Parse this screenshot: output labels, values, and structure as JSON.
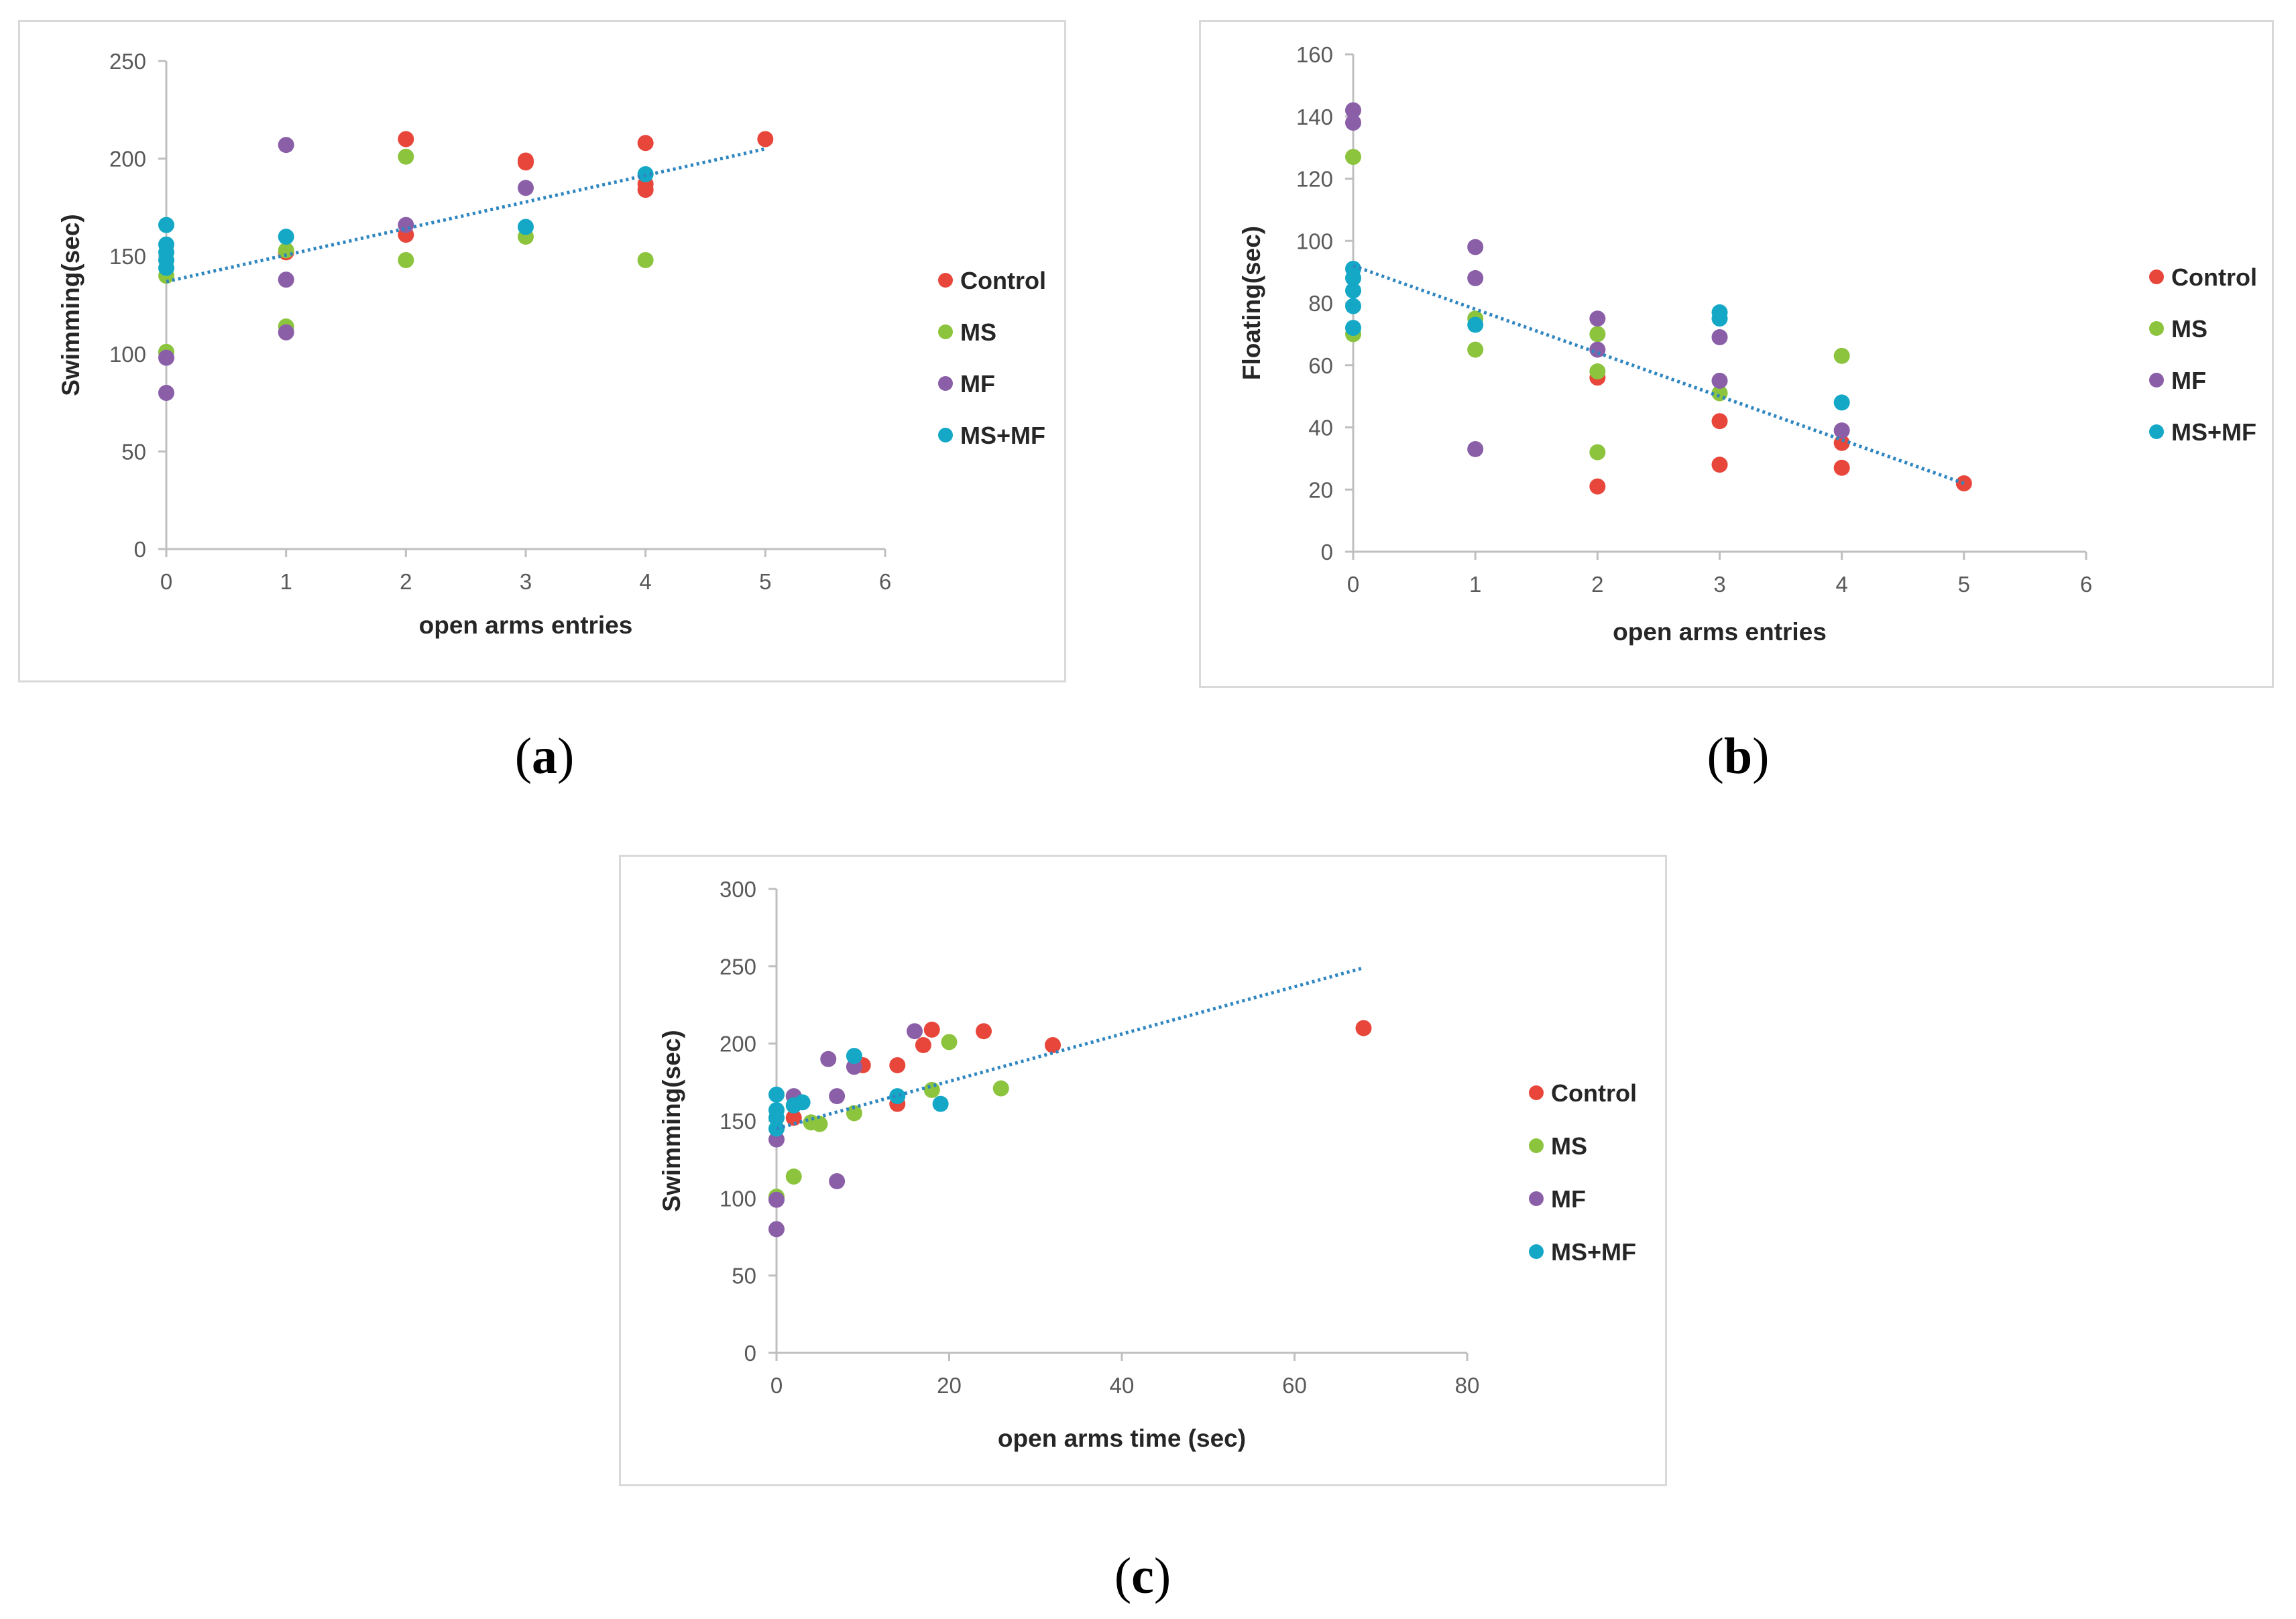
{
  "colors": {
    "Control": "#e8463a",
    "MS": "#8cc43e",
    "MF": "#8a5fa8",
    "MS+MF": "#14a8c6",
    "trend": "#2e86c1",
    "axis": "#bfbfbf"
  },
  "chart_data": [
    {
      "id": "a",
      "type": "scatter",
      "caption": "a",
      "xlabel": "open arms entries",
      "ylabel": "Swimming(sec)",
      "xlim": [
        0,
        6
      ],
      "ylim": [
        0,
        250
      ],
      "xticks": [
        0,
        1,
        2,
        3,
        4,
        5,
        6
      ],
      "yticks": [
        0,
        50,
        100,
        150,
        200,
        250
      ],
      "grid": false,
      "legend_position": "right",
      "trendline": {
        "x": [
          0,
          5
        ],
        "y": [
          137,
          205
        ]
      },
      "series": [
        {
          "name": "Control",
          "x": [
            1,
            2,
            2,
            3,
            3,
            4,
            4,
            4,
            5
          ],
          "y": [
            152,
            161,
            210,
            198,
            199,
            184,
            187,
            208,
            210
          ]
        },
        {
          "name": "MS",
          "x": [
            0,
            0,
            1,
            1,
            2,
            2,
            3,
            4
          ],
          "y": [
            140,
            101,
            114,
            153,
            201,
            148,
            160,
            148
          ]
        },
        {
          "name": "MF",
          "x": [
            0,
            0,
            1,
            1,
            1,
            2,
            3
          ],
          "y": [
            98,
            80,
            207,
            138,
            111,
            166,
            185
          ]
        },
        {
          "name": "MS+MF",
          "x": [
            0,
            0,
            0,
            0,
            0,
            1,
            3,
            4
          ],
          "y": [
            166,
            156,
            152,
            148,
            144,
            160,
            165,
            192
          ]
        }
      ]
    },
    {
      "id": "b",
      "type": "scatter",
      "caption": "b",
      "xlabel": "open arms entries",
      "ylabel": "Floating(sec)",
      "xlim": [
        0,
        6
      ],
      "ylim": [
        0,
        160
      ],
      "xticks": [
        0,
        1,
        2,
        3,
        4,
        5,
        6
      ],
      "yticks": [
        0,
        20,
        40,
        60,
        80,
        100,
        120,
        140,
        160
      ],
      "grid": false,
      "legend_position": "right",
      "trendline": {
        "x": [
          0,
          5
        ],
        "y": [
          92,
          22
        ]
      },
      "series": [
        {
          "name": "Control",
          "x": [
            2,
            2,
            3,
            3,
            4,
            4,
            5
          ],
          "y": [
            56,
            21,
            42,
            28,
            35,
            27,
            22
          ]
        },
        {
          "name": "MS",
          "x": [
            0,
            0,
            1,
            1,
            2,
            2,
            2,
            3,
            4
          ],
          "y": [
            127,
            70,
            75,
            65,
            70,
            58,
            32,
            51,
            63
          ]
        },
        {
          "name": "MF",
          "x": [
            0,
            0,
            1,
            1,
            1,
            2,
            2,
            3,
            3,
            4
          ],
          "y": [
            142,
            138,
            98,
            88,
            33,
            75,
            65,
            69,
            55,
            39
          ]
        },
        {
          "name": "MS+MF",
          "x": [
            0,
            0,
            0,
            0,
            0,
            1,
            3,
            3,
            4
          ],
          "y": [
            91,
            88,
            84,
            79,
            72,
            73,
            77,
            75,
            48
          ]
        }
      ]
    },
    {
      "id": "c",
      "type": "scatter",
      "caption": "c",
      "xlabel": "open arms time (sec)",
      "ylabel": "Swimming(sec)",
      "xlim": [
        0,
        80
      ],
      "ylim": [
        0,
        300
      ],
      "xticks": [
        0,
        20,
        40,
        60,
        80
      ],
      "yticks": [
        0,
        50,
        100,
        150,
        200,
        250,
        300
      ],
      "grid": false,
      "legend_position": "right",
      "trendline": {
        "x": [
          0,
          68
        ],
        "y": [
          145,
          249
        ]
      },
      "series": [
        {
          "name": "Control",
          "x": [
            2,
            10,
            14,
            14,
            17,
            18,
            24,
            32,
            68
          ],
          "y": [
            152,
            186,
            186,
            161,
            199,
            209,
            208,
            199,
            210
          ]
        },
        {
          "name": "MS",
          "x": [
            0,
            2,
            4,
            5,
            9,
            18,
            20,
            26
          ],
          "y": [
            101,
            114,
            149,
            148,
            155,
            170,
            201,
            171
          ]
        },
        {
          "name": "MF",
          "x": [
            0,
            0,
            0,
            2,
            6,
            7,
            7,
            9,
            16
          ],
          "y": [
            80,
            99,
            138,
            166,
            190,
            166,
            111,
            185,
            208
          ]
        },
        {
          "name": "MS+MF",
          "x": [
            0,
            0,
            0,
            0,
            2,
            3,
            9,
            14,
            19
          ],
          "y": [
            167,
            157,
            152,
            145,
            160,
            162,
            192,
            166,
            161
          ]
        }
      ]
    }
  ]
}
